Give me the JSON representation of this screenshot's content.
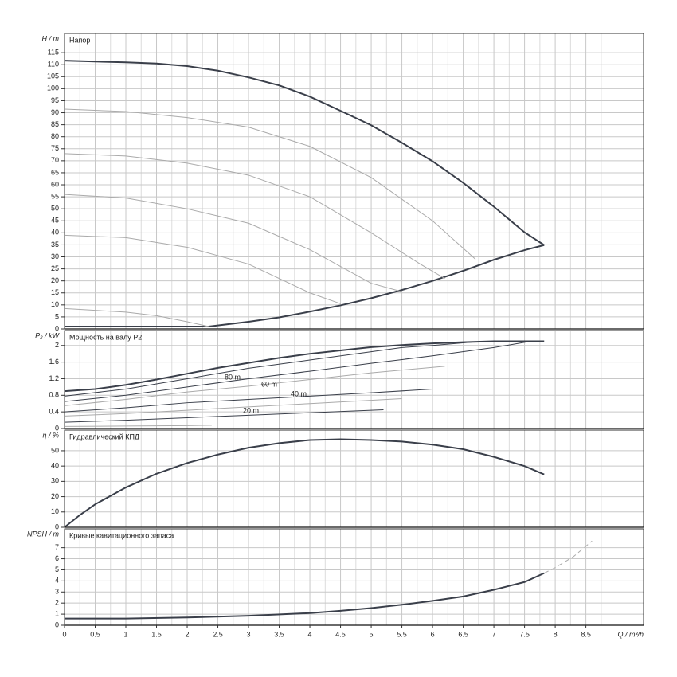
{
  "chart_data": [
    {
      "type": "line",
      "title": "Напор",
      "ylabel": "H / m",
      "xlim": [
        0,
        9.44
      ],
      "ylim": [
        0,
        123
      ],
      "yticks": [
        0,
        5,
        10,
        15,
        20,
        25,
        30,
        35,
        40,
        45,
        50,
        55,
        60,
        65,
        70,
        75,
        80,
        85,
        90,
        95,
        100,
        105,
        110,
        115
      ],
      "grid": true,
      "series": [
        {
          "color": "#3a3f4a",
          "line_width": 2,
          "x": [
            0,
            0.5,
            1,
            1.5,
            2,
            2.5,
            3,
            3.5,
            4,
            4.5,
            5,
            5.5,
            6,
            6.5,
            7,
            7.5,
            7.82
          ],
          "values": [
            111.7,
            111.3,
            111,
            110.5,
            109.4,
            107.5,
            104.7,
            101.4,
            96.7,
            90.8,
            84.8,
            77.5,
            69.8,
            60.8,
            50.9,
            40.2,
            34.9
          ]
        },
        {
          "color": "#3a3f4a",
          "line_width": 2,
          "x": [
            0,
            1,
            2,
            2.35,
            3,
            3.5,
            4,
            4.5,
            5,
            5.5,
            6,
            6.5,
            7,
            7.5,
            7.82
          ],
          "values": [
            1,
            1,
            1,
            1,
            3,
            4.8,
            7.2,
            9.8,
            12.8,
            16.2,
            20,
            24.2,
            28.8,
            32.8,
            34.9
          ]
        },
        {
          "color": "#aaaaaa",
          "line_width": 1,
          "x": [
            0,
            1,
            2,
            3,
            4,
            5,
            6,
            6.7
          ],
          "values": [
            91.5,
            90.5,
            88,
            84,
            76,
            63,
            45,
            29
          ]
        },
        {
          "color": "#aaaaaa",
          "line_width": 1,
          "x": [
            0,
            1,
            2,
            3,
            4,
            5,
            5.8,
            6.2
          ],
          "values": [
            73,
            72,
            69,
            64,
            55,
            40,
            27,
            21
          ]
        },
        {
          "color": "#aaaaaa",
          "line_width": 1,
          "x": [
            0,
            1,
            2,
            3,
            4,
            5,
            5.5
          ],
          "values": [
            56,
            54.5,
            50,
            44,
            33,
            19,
            15.5
          ]
        },
        {
          "color": "#aaaaaa",
          "line_width": 1,
          "x": [
            0,
            1,
            2,
            3,
            4,
            4.5
          ],
          "values": [
            39,
            38,
            34,
            27,
            15,
            10.5
          ]
        },
        {
          "color": "#aaaaaa",
          "line_width": 1,
          "x": [
            0,
            1,
            1.5,
            2,
            2.35
          ],
          "values": [
            8.5,
            7,
            5.5,
            3,
            1
          ]
        }
      ]
    },
    {
      "type": "line",
      "title": "Мощность на валу P2",
      "ylabel": "P₂ / kW",
      "xlim": [
        0,
        9.44
      ],
      "ylim": [
        0,
        2.36
      ],
      "yticks": [
        0,
        0.4,
        0.8,
        1.2,
        1.6,
        2
      ],
      "grid": true,
      "annotations": [
        "80 m",
        "60 m",
        "40 m",
        "20 m"
      ],
      "series": [
        {
          "color": "#3a3f4a",
          "line_width": 2,
          "x": [
            0,
            0.5,
            1,
            1.5,
            2,
            2.5,
            3,
            3.5,
            4,
            4.5,
            5,
            5.5,
            6,
            6.5,
            7,
            7.5,
            7.82
          ],
          "values": [
            0.9,
            0.95,
            1.05,
            1.18,
            1.32,
            1.46,
            1.58,
            1.7,
            1.8,
            1.88,
            1.96,
            2.01,
            2.05,
            2.08,
            2.1,
            2.1,
            2.1
          ]
        },
        {
          "color": "#3a3f4a",
          "line_width": 1,
          "x": [
            0,
            1,
            2,
            3,
            4,
            5,
            5.5,
            6,
            6.8
          ],
          "values": [
            0.78,
            0.95,
            1.2,
            1.45,
            1.65,
            1.85,
            1.95,
            2.0,
            2.1
          ]
        },
        {
          "color": "#3a3f4a",
          "line_width": 1,
          "x": [
            0,
            1,
            2,
            3,
            4,
            5,
            6,
            7,
            7.6
          ],
          "values": [
            0.65,
            0.8,
            1.0,
            1.2,
            1.38,
            1.57,
            1.75,
            1.95,
            2.1
          ]
        },
        {
          "color": "#aaaaaa",
          "line_width": 1,
          "x": [
            0,
            1,
            2,
            3,
            4,
            5,
            6.2
          ],
          "values": [
            0.55,
            0.7,
            0.88,
            1.02,
            1.18,
            1.34,
            1.5
          ]
        },
        {
          "color": "#3a3f4a",
          "line_width": 1,
          "x": [
            0,
            1,
            2,
            3,
            4,
            5,
            6
          ],
          "values": [
            0.4,
            0.5,
            0.62,
            0.7,
            0.78,
            0.86,
            0.95
          ]
        },
        {
          "color": "#aaaaaa",
          "line_width": 1,
          "x": [
            0,
            1,
            2,
            3,
            4,
            5.5
          ],
          "values": [
            0.3,
            0.36,
            0.44,
            0.52,
            0.6,
            0.72
          ]
        },
        {
          "color": "#3a3f4a",
          "line_width": 1,
          "x": [
            0,
            1,
            2,
            3,
            4,
            5.2
          ],
          "values": [
            0.15,
            0.2,
            0.26,
            0.32,
            0.38,
            0.45
          ]
        },
        {
          "color": "#aaaaaa",
          "line_width": 1,
          "x": [
            0,
            1,
            2,
            2.4
          ],
          "values": [
            0.05,
            0.06,
            0.07,
            0.08
          ]
        }
      ]
    },
    {
      "type": "line",
      "title": "Гидравлический КПД",
      "ylabel": "η / %",
      "xlim": [
        0,
        9.44
      ],
      "ylim": [
        0,
        63.5
      ],
      "yticks": [
        0,
        10,
        20,
        30,
        40,
        50
      ],
      "grid": true,
      "series": [
        {
          "color": "#3a3f4a",
          "line_width": 2,
          "x": [
            0,
            0.25,
            0.5,
            1,
            1.5,
            2,
            2.5,
            3,
            3.5,
            4,
            4.5,
            5,
            5.5,
            6,
            6.5,
            7,
            7.5,
            7.82
          ],
          "values": [
            0,
            8,
            15,
            26,
            35,
            42,
            47.5,
            52,
            55,
            57,
            57.5,
            57,
            56,
            54,
            51,
            46,
            40,
            34.5
          ]
        }
      ]
    },
    {
      "type": "line",
      "title": "Кривые кавитационного запаса",
      "ylabel": "NPSH / m",
      "xlabel": "Q / m³/h",
      "xlim": [
        0,
        9.44
      ],
      "ylim": [
        0,
        8.7
      ],
      "xticks": [
        0,
        0.5,
        1,
        1.5,
        2,
        2.5,
        3,
        3.5,
        4,
        4.5,
        5,
        5.5,
        6,
        6.5,
        7,
        7.5,
        8,
        8.5
      ],
      "yticks": [
        0,
        1,
        2,
        3,
        4,
        5,
        6,
        7
      ],
      "grid": true,
      "series": [
        {
          "color": "#3a3f4a",
          "line_width": 2,
          "x": [
            0,
            1,
            2,
            3,
            4,
            4.5,
            5,
            5.5,
            6,
            6.5,
            7,
            7.5,
            7.82
          ],
          "values": [
            0.6,
            0.6,
            0.7,
            0.85,
            1.1,
            1.3,
            1.55,
            1.85,
            2.2,
            2.6,
            3.2,
            3.9,
            4.7
          ]
        },
        {
          "color": "#aaaaaa",
          "line_width": 1,
          "dashed": true,
          "x": [
            7.82,
            8,
            8.3,
            8.6
          ],
          "values": [
            4.7,
            5.2,
            6.2,
            7.6
          ]
        }
      ]
    }
  ]
}
